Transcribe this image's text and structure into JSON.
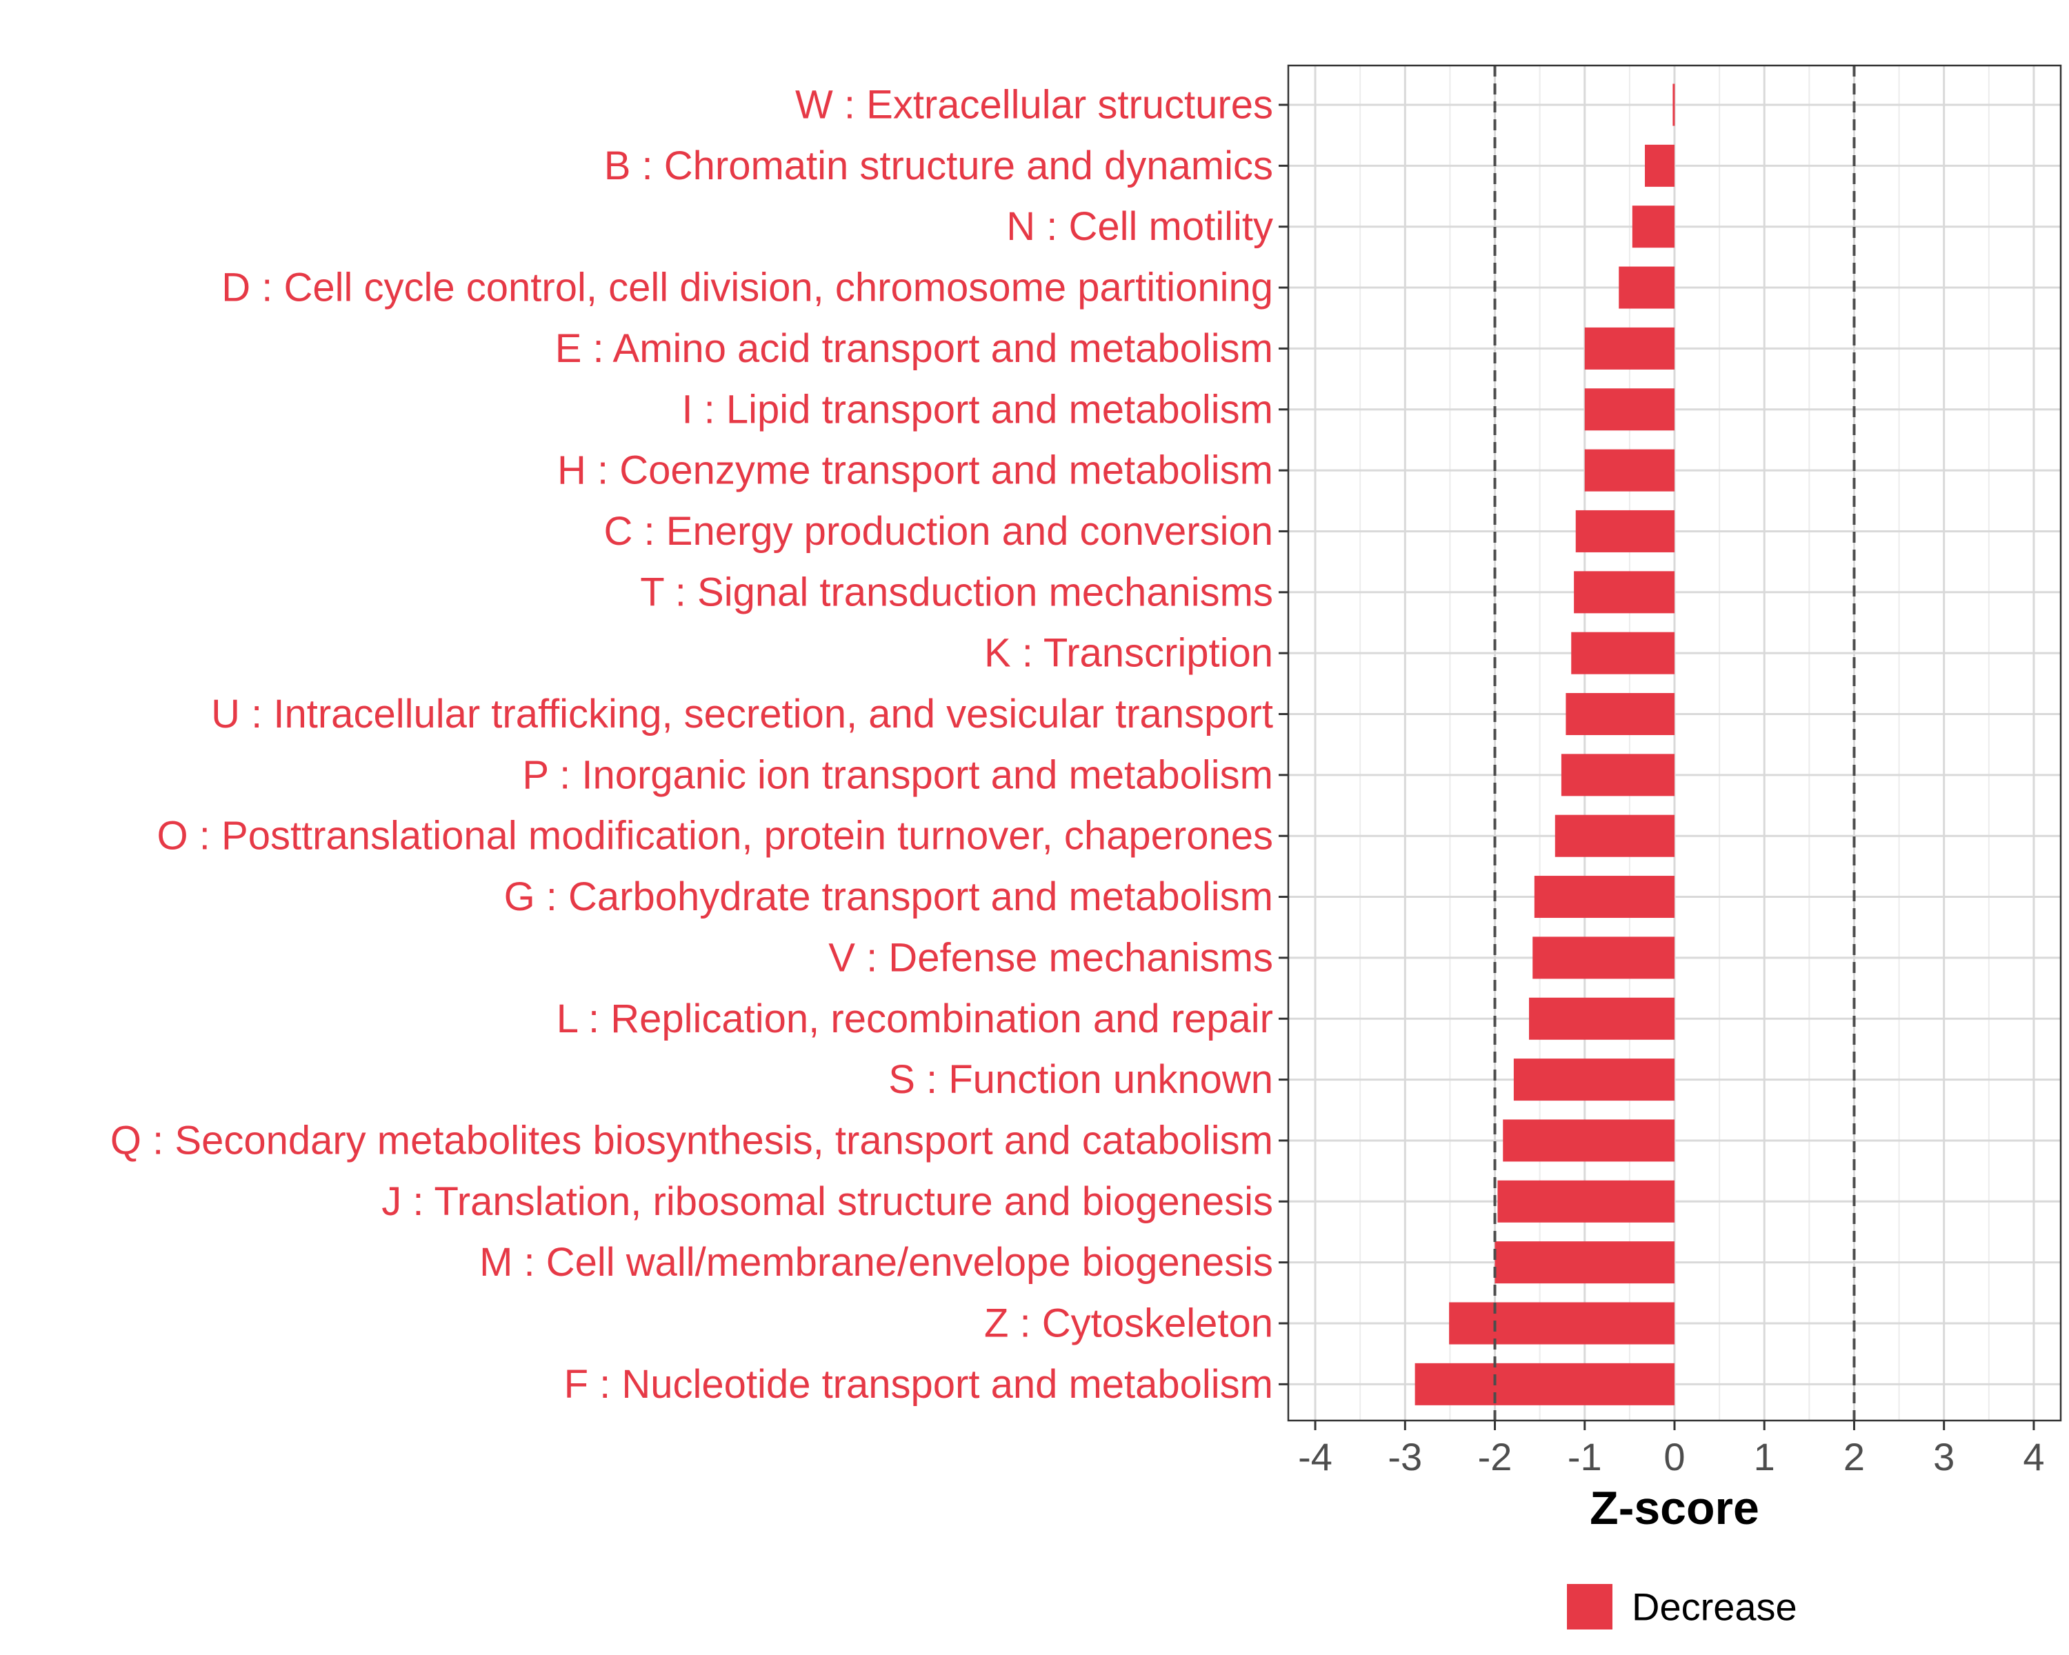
{
  "chart_data": {
    "type": "bar",
    "orientation": "horizontal",
    "categories": [
      "W : Extracellular structures",
      "B : Chromatin structure and dynamics",
      "N : Cell motility",
      "D : Cell cycle control, cell division, chromosome partitioning",
      "E : Amino acid transport and metabolism",
      "I : Lipid transport and metabolism",
      "H : Coenzyme transport and metabolism",
      "C : Energy production and conversion",
      "T : Signal transduction mechanisms",
      "K : Transcription",
      "U : Intracellular trafficking, secretion, and vesicular transport",
      "P : Inorganic ion transport and metabolism",
      "O : Posttranslational modification, protein turnover, chaperones",
      "G : Carbohydrate transport and metabolism",
      "V : Defense mechanisms",
      "L : Replication, recombination and repair",
      "S : Function unknown",
      "Q : Secondary metabolites biosynthesis, transport and catabolism",
      "J : Translation, ribosomal structure and biogenesis",
      "M : Cell wall/membrane/envelope biogenesis",
      "Z : Cytoskeleton",
      "F : Nucleotide transport and metabolism"
    ],
    "values": [
      -0.02,
      -0.33,
      -0.47,
      -0.62,
      -1.0,
      -1.0,
      -1.0,
      -1.1,
      -1.12,
      -1.15,
      -1.21,
      -1.26,
      -1.33,
      -1.56,
      -1.58,
      -1.62,
      -1.79,
      -1.91,
      -1.97,
      -2.0,
      -2.51,
      -2.89
    ],
    "series": [
      {
        "name": "Decrease",
        "color": "#e63946"
      }
    ],
    "xlabel": "Z-score",
    "ylabel": "",
    "xlim": [
      -4.3,
      4.3
    ],
    "xticks": [
      -4,
      -3,
      -2,
      -1,
      0,
      1,
      2,
      3,
      4
    ],
    "xtick_labels": [
      "-4",
      "-3",
      "-2",
      "-1",
      "0",
      "1",
      "2",
      "3",
      "4"
    ],
    "reference_lines": [
      -2,
      2
    ],
    "grid": true,
    "legend_position": "bottom",
    "colors": {
      "bar": "#e63946",
      "label": "#e63946",
      "grid": "#d9d9d9",
      "axis": "#333333",
      "ref_line": "#4d4d4d"
    }
  }
}
